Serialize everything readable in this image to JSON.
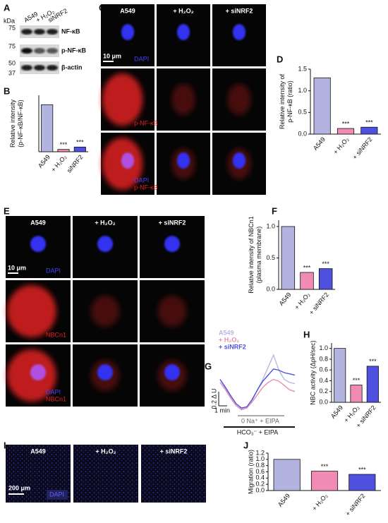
{
  "panel_letters": [
    "A",
    "B",
    "C",
    "D",
    "E",
    "F",
    "G",
    "H",
    "I",
    "J"
  ],
  "blot": {
    "kda_label": "kDa",
    "markers": [
      "75",
      "75",
      "50",
      "37"
    ],
    "lanes": [
      "A549",
      "+ H₂O₂",
      "siNRF2"
    ],
    "bands": [
      "NF-κB",
      "p-NF-κB",
      "β-actin"
    ]
  },
  "C": {
    "headers": [
      "A549",
      "+ H₂O₂",
      "+ siNRF2"
    ],
    "scale_bar": "10 μm",
    "row_labels": [
      [
        "DAPI"
      ],
      [
        "p-NF-κB"
      ],
      [
        "DAPI",
        "p-NF-κB"
      ]
    ]
  },
  "E": {
    "headers": [
      "A549",
      "+ H₂O₂",
      "+ siNRF2"
    ],
    "scale_bar": "10 μm",
    "row_labels": [
      [
        "DAPI"
      ],
      [
        "NBCn1"
      ],
      [
        "DAPI",
        "NBCn1"
      ]
    ]
  },
  "I": {
    "headers": [
      "A549",
      "+ H₂O₂",
      "+ siNRF2"
    ],
    "scale_bar": "200 μm",
    "stain": "DAPI"
  },
  "chart_data": [
    {
      "type": "bar",
      "ylabel": [
        "Relative intensity",
        "(p-NF-κB/NF-κB)"
      ],
      "categories": [
        "A549",
        "+ H₂O₂",
        "siNRF2"
      ],
      "values": [
        1.0,
        0.05,
        0.1
      ],
      "colors": [
        "#b3b3e0",
        "#f08cb4",
        "#5050e0"
      ],
      "ylim": [
        0,
        1.2
      ],
      "significance": [
        {
          "category": 1,
          "label": "***"
        },
        {
          "category": 2,
          "label": "***"
        }
      ]
    },
    {
      "type": "bar",
      "ylabel": [
        "Relative intensity of",
        "p-NF-κB (ratio)"
      ],
      "categories": [
        "A549",
        "+ H₂O₂",
        "+ siNRF2"
      ],
      "values": [
        1.3,
        0.13,
        0.16
      ],
      "colors": [
        "#b3b3e0",
        "#f08cb4",
        "#5050e0"
      ],
      "ylim": [
        0,
        1.5
      ],
      "yticks": [
        {
          "value": 0,
          "label": "0.0"
        },
        0.5,
        {
          "value": 1,
          "label": "1.0"
        },
        1.5
      ],
      "significance": [
        {
          "category": 1,
          "label": "***"
        },
        {
          "category": 2,
          "label": "***"
        }
      ]
    },
    {
      "type": "bar",
      "ylabel": [
        "Relative intensity of NBCn1",
        "(plasma  membrane)"
      ],
      "categories": [
        "A549",
        "+ H₂O₂",
        "+ siNRF2"
      ],
      "values": [
        1.0,
        0.27,
        0.33
      ],
      "colors": [
        "#b3b3e0",
        "#f08cb4",
        "#5050e0"
      ],
      "ylim": [
        0,
        1.1
      ],
      "yticks": [
        {
          "value": 0,
          "label": "0.0"
        },
        0.5,
        {
          "value": 1,
          "label": "1.0"
        }
      ],
      "significance": [
        {
          "category": 1,
          "label": "***"
        },
        {
          "category": 2,
          "label": "***"
        }
      ]
    },
    {
      "type": "line",
      "x": [
        0,
        1,
        2,
        3,
        4,
        5,
        6,
        7,
        8,
        9,
        10,
        11,
        12,
        13,
        14
      ],
      "xlim": [
        0,
        14
      ],
      "ylim": [
        0,
        1.1
      ],
      "series": [
        {
          "name": "A549",
          "color": "#b8b8e0",
          "values": [
            0.55,
            0.4,
            0.25,
            0.12,
            0.05,
            0.08,
            0.2,
            0.38,
            0.55,
            0.75,
            0.95,
            0.7,
            0.55,
            0.5,
            0.48
          ]
        },
        {
          "name": "+ H₂O₂",
          "color": "#e88fb0",
          "values": [
            0.5,
            0.38,
            0.24,
            0.12,
            0.06,
            0.08,
            0.18,
            0.3,
            0.42,
            0.5,
            0.55,
            0.52,
            0.45,
            0.38,
            0.35
          ]
        },
        {
          "name": "+ siNRF2",
          "color": "#5050e0",
          "values": [
            0.55,
            0.42,
            0.28,
            0.15,
            0.08,
            0.1,
            0.22,
            0.38,
            0.52,
            0.62,
            0.72,
            0.7,
            0.66,
            0.64,
            0.62
          ]
        }
      ],
      "scale_y": "0.2 Δ U",
      "scale_x": "1 min",
      "annotations": [
        "0 Na⁺ + EIPA",
        "HCO₃⁻ + EIPA"
      ]
    },
    {
      "type": "bar",
      "ylabel": [
        "NBC activity (ΔpH/sec)"
      ],
      "categories": [
        "A549",
        "+ H₂O₂",
        "+ siNRF2"
      ],
      "values": [
        1.0,
        0.32,
        0.67
      ],
      "colors": [
        "#b3b3e0",
        "#f08cb4",
        "#5050e0"
      ],
      "ylim": [
        0,
        1.1
      ],
      "yticks": [
        {
          "value": 0,
          "label": "0.0"
        },
        0.2,
        0.4,
        0.6,
        0.8,
        {
          "value": 1,
          "label": "1.0"
        }
      ],
      "significance": [
        {
          "category": 1,
          "label": "***"
        },
        {
          "category": 2,
          "label": "***"
        }
      ]
    },
    {
      "type": "bar",
      "ylabel": [
        "Migration (ratio)"
      ],
      "categories": [
        "A549",
        "+ H₂O₂",
        "+ siNRF2"
      ],
      "values": [
        1.0,
        0.62,
        0.52
      ],
      "colors": [
        "#b3b3e0",
        "#f08cb4",
        "#5050e0"
      ],
      "ylim": [
        0,
        1.2
      ],
      "yticks": [
        {
          "value": 0,
          "label": "0.0"
        },
        0.2,
        0.4,
        0.6,
        0.8,
        {
          "value": 1,
          "label": "1.0"
        },
        1.2
      ],
      "significance": [
        {
          "category": 1,
          "label": "***"
        },
        {
          "category": 2,
          "label": "***"
        }
      ]
    }
  ]
}
